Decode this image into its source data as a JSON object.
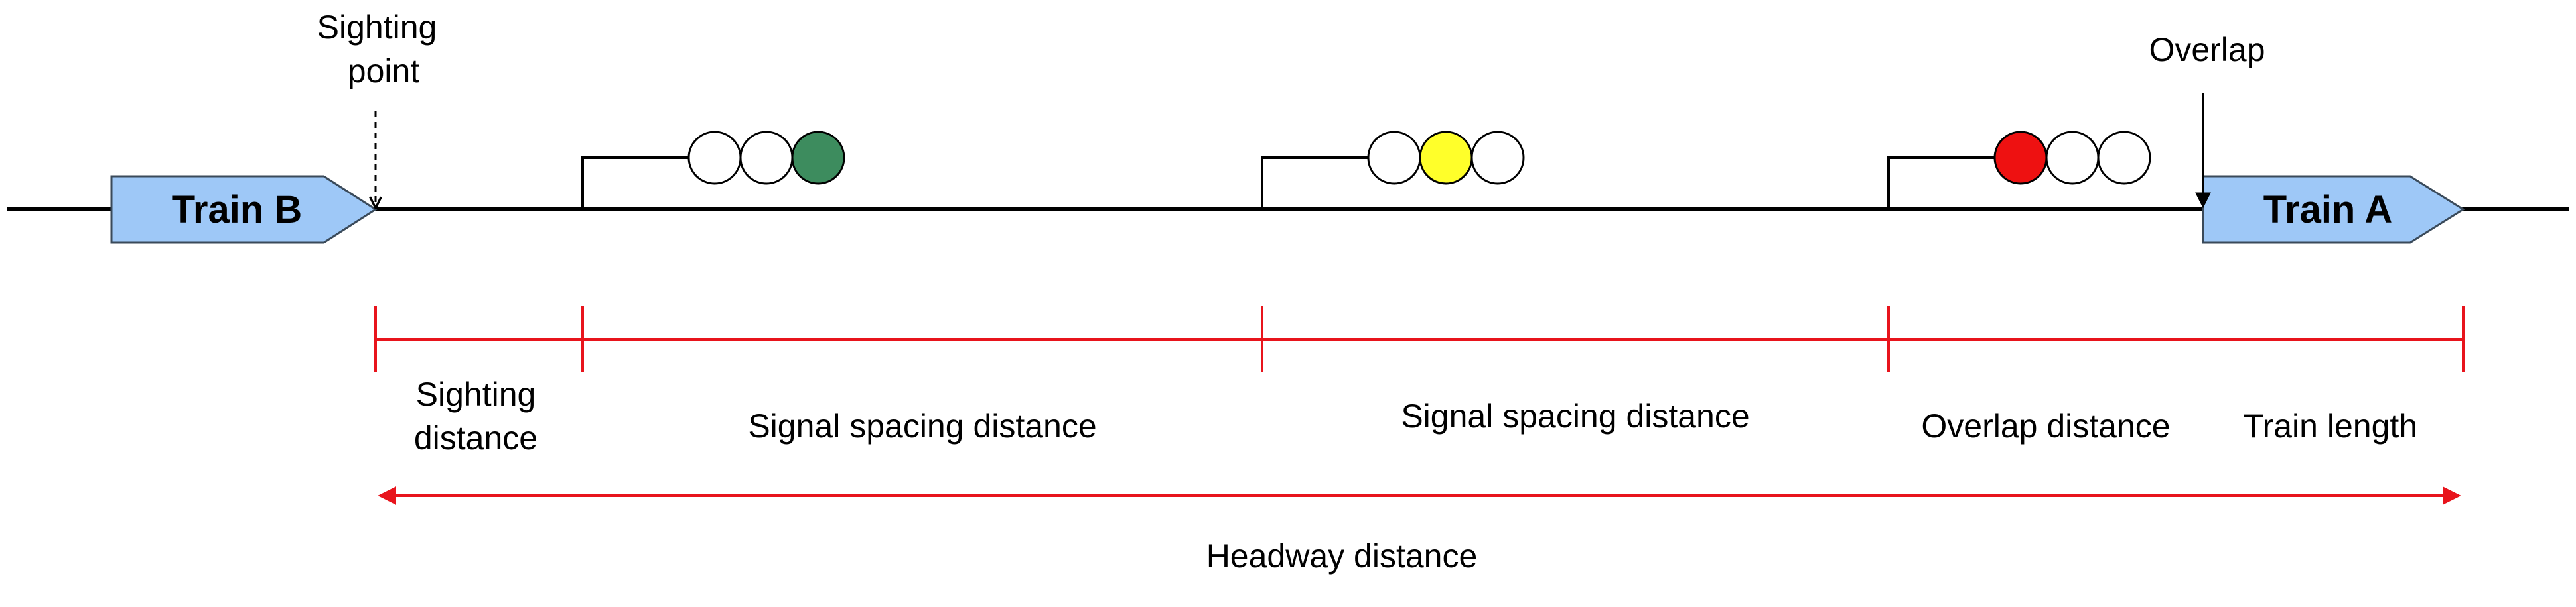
{
  "colors": {
    "track": "#000000",
    "train_fill": "#9ec8f7",
    "train_stroke": "#3a4a5a",
    "dimension": "#e8141c",
    "aspect_green": "#3d8c5e",
    "aspect_yellow": "#ffff2a",
    "aspect_red": "#ee1111",
    "aspect_off": "#ffffff"
  },
  "trains": [
    {
      "id": "train-b",
      "label": "Train B"
    },
    {
      "id": "train-a",
      "label": "Train A"
    }
  ],
  "markers": {
    "sighting_point": [
      "Sighting",
      "point"
    ],
    "overlap": "Overlap"
  },
  "signals": [
    {
      "id": "signal-1",
      "lit": "green",
      "icon": "signal-head-green-icon"
    },
    {
      "id": "signal-2",
      "lit": "yellow",
      "icon": "signal-head-yellow-icon"
    },
    {
      "id": "signal-3",
      "lit": "red",
      "icon": "signal-head-red-icon"
    }
  ],
  "segments": [
    {
      "id": "sighting-distance",
      "lines": [
        "Sighting",
        "distance"
      ]
    },
    {
      "id": "signal-spacing-distance-1",
      "lines": [
        "Signal spacing distance"
      ]
    },
    {
      "id": "signal-spacing-distance-2",
      "lines": [
        "Signal spacing distance"
      ]
    },
    {
      "id": "overlap-distance",
      "lines": [
        "Overlap distance"
      ]
    },
    {
      "id": "train-length",
      "lines": [
        "Train length"
      ]
    }
  ],
  "headway": {
    "label": "Headway distance"
  }
}
